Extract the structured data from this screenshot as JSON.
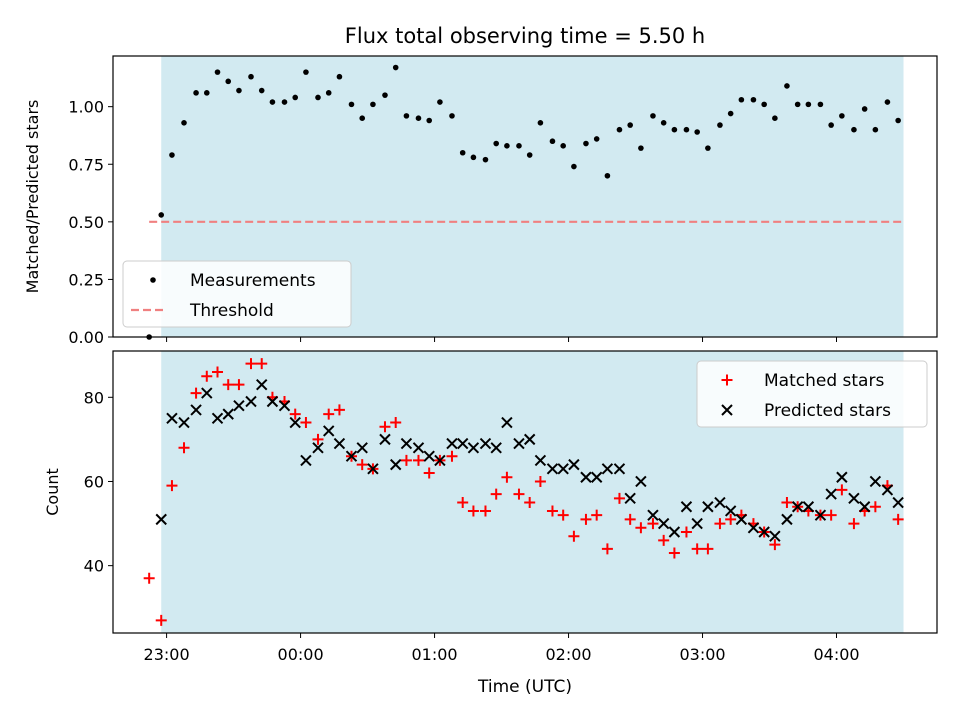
{
  "chart_data": [
    {
      "type": "scatter",
      "title": "Flux total observing time = 5.50 h",
      "ylabel": "Matched/Predicted stars",
      "xlabel": "",
      "x_unit": "hours since 23:00 UTC",
      "ylim": [
        0,
        1.22
      ],
      "xlim": [
        -0.4,
        5.75
      ],
      "yticks": [
        0.0,
        0.25,
        0.5,
        0.75,
        1.0
      ],
      "ytick_labels": [
        "0.00",
        "0.25",
        "0.50",
        "0.75",
        "1.00"
      ],
      "xticks": [
        0,
        1,
        2,
        3,
        4,
        5
      ],
      "xtick_labels": [
        "",
        "",
        "",
        "",
        "",
        ""
      ],
      "shaded_region": {
        "x_start": -0.04,
        "x_end": 5.5,
        "color": "#add8e6"
      },
      "threshold": {
        "name": "Threshold",
        "value": 0.5,
        "x_start": -0.13,
        "x_end": 5.5,
        "color": "#f08080"
      },
      "legend": {
        "placement": "lower-left",
        "entries": [
          "Measurements",
          "Threshold"
        ]
      },
      "series": [
        {
          "name": "Measurements",
          "color": "#000000",
          "marker": "dot",
          "x": [
            -0.13,
            -0.04,
            0.04,
            0.13,
            0.22,
            0.3,
            0.38,
            0.46,
            0.54,
            0.63,
            0.71,
            0.79,
            0.88,
            0.96,
            1.04,
            1.13,
            1.21,
            1.29,
            1.38,
            1.46,
            1.54,
            1.63,
            1.71,
            1.79,
            1.88,
            1.96,
            2.04,
            2.13,
            2.21,
            2.29,
            2.38,
            2.46,
            2.54,
            2.63,
            2.71,
            2.79,
            2.88,
            2.96,
            3.04,
            3.13,
            3.21,
            3.29,
            3.38,
            3.46,
            3.54,
            3.63,
            3.71,
            3.79,
            3.88,
            3.96,
            4.04,
            4.13,
            4.21,
            4.29,
            4.38,
            4.46,
            4.54,
            4.63,
            4.71,
            4.79,
            4.88,
            4.96,
            5.04,
            5.13,
            5.21,
            5.29,
            5.38,
            5.46
          ],
          "y": [
            0.0,
            0.53,
            0.79,
            0.93,
            1.06,
            1.06,
            1.15,
            1.11,
            1.07,
            1.13,
            1.07,
            1.02,
            1.02,
            1.04,
            1.15,
            1.04,
            1.06,
            1.13,
            1.01,
            0.95,
            1.01,
            1.05,
            1.17,
            0.96,
            0.95,
            0.94,
            1.02,
            0.96,
            0.8,
            0.78,
            0.77,
            0.84,
            0.83,
            0.83,
            0.79,
            0.93,
            0.85,
            0.83,
            0.74,
            0.84,
            0.86,
            0.7,
            0.9,
            0.92,
            0.82,
            0.96,
            0.93,
            0.9,
            0.9,
            0.89,
            0.82,
            0.92,
            0.97,
            1.03,
            1.03,
            1.01,
            0.95,
            1.09,
            1.01,
            1.01,
            1.01,
            0.92,
            0.96,
            0.9,
            0.99,
            0.9,
            1.02,
            0.94
          ]
        }
      ]
    },
    {
      "type": "scatter",
      "title": "",
      "ylabel": "Count",
      "xlabel": "Time (UTC)",
      "x_unit": "hours since 23:00 UTC",
      "ylim": [
        24,
        91
      ],
      "xlim": [
        -0.4,
        5.75
      ],
      "yticks": [
        40,
        60,
        80
      ],
      "ytick_labels": [
        "40",
        "60",
        "80"
      ],
      "xticks": [
        0,
        1,
        2,
        3,
        4,
        5
      ],
      "xtick_labels": [
        "23:00",
        "00:00",
        "01:00",
        "02:00",
        "03:00",
        "04:00"
      ],
      "shaded_region": {
        "x_start": -0.04,
        "x_end": 5.5,
        "color": "#add8e6"
      },
      "legend": {
        "placement": "top-right",
        "entries": [
          "Matched stars",
          "Predicted stars"
        ]
      },
      "series": [
        {
          "name": "Matched stars",
          "color": "#ff0000",
          "marker": "plus",
          "x": [
            -0.13,
            -0.04,
            0.04,
            0.13,
            0.22,
            0.3,
            0.38,
            0.46,
            0.54,
            0.63,
            0.71,
            0.79,
            0.88,
            0.96,
            1.04,
            1.13,
            1.21,
            1.29,
            1.38,
            1.46,
            1.54,
            1.63,
            1.71,
            1.79,
            1.88,
            1.96,
            2.04,
            2.13,
            2.21,
            2.29,
            2.38,
            2.46,
            2.54,
            2.63,
            2.71,
            2.79,
            2.88,
            2.96,
            3.04,
            3.13,
            3.21,
            3.29,
            3.38,
            3.46,
            3.54,
            3.63,
            3.71,
            3.79,
            3.88,
            3.96,
            4.04,
            4.13,
            4.21,
            4.29,
            4.38,
            4.46,
            4.54,
            4.63,
            4.71,
            4.79,
            4.88,
            4.96,
            5.04,
            5.13,
            5.21,
            5.29,
            5.38,
            5.46
          ],
          "y": [
            37,
            27,
            59,
            68,
            81,
            85,
            86,
            83,
            83,
            88,
            88,
            80,
            79,
            76,
            74,
            70,
            76,
            77,
            66,
            64,
            63,
            73,
            74,
            65,
            65,
            62,
            65,
            66,
            55,
            53,
            53,
            57,
            61,
            57,
            55,
            60,
            53,
            52,
            47,
            51,
            52,
            44,
            56,
            51,
            49,
            50,
            46,
            43,
            48,
            44,
            44,
            50,
            51,
            52,
            50,
            48,
            45,
            55,
            54,
            53,
            52,
            52,
            58,
            50,
            53,
            54,
            59,
            51
          ]
        },
        {
          "name": "Predicted stars",
          "color": "#000000",
          "marker": "cross",
          "x": [
            -0.04,
            0.04,
            0.13,
            0.22,
            0.3,
            0.38,
            0.46,
            0.54,
            0.63,
            0.71,
            0.79,
            0.88,
            0.96,
            1.04,
            1.13,
            1.21,
            1.29,
            1.38,
            1.46,
            1.54,
            1.63,
            1.71,
            1.79,
            1.88,
            1.96,
            2.04,
            2.13,
            2.21,
            2.29,
            2.38,
            2.46,
            2.54,
            2.63,
            2.71,
            2.79,
            2.88,
            2.96,
            3.04,
            3.13,
            3.21,
            3.29,
            3.38,
            3.46,
            3.54,
            3.63,
            3.71,
            3.79,
            3.88,
            3.96,
            4.04,
            4.13,
            4.21,
            4.29,
            4.38,
            4.46,
            4.54,
            4.63,
            4.71,
            4.79,
            4.88,
            4.96,
            5.04,
            5.13,
            5.21,
            5.29,
            5.38,
            5.46
          ],
          "y": [
            51,
            75,
            74,
            77,
            81,
            75,
            76,
            78,
            79,
            83,
            79,
            78,
            74,
            65,
            68,
            72,
            69,
            66,
            68,
            63,
            70,
            64,
            69,
            68,
            66,
            65,
            69,
            69,
            68,
            69,
            68,
            74,
            69,
            70,
            65,
            63,
            63,
            64,
            61,
            61,
            63,
            63,
            56,
            60,
            52,
            50,
            48,
            54,
            50,
            54,
            55,
            53,
            51,
            49,
            48,
            47,
            51,
            54,
            54,
            52,
            57,
            61,
            56,
            54,
            60,
            58,
            55
          ]
        }
      ]
    }
  ]
}
